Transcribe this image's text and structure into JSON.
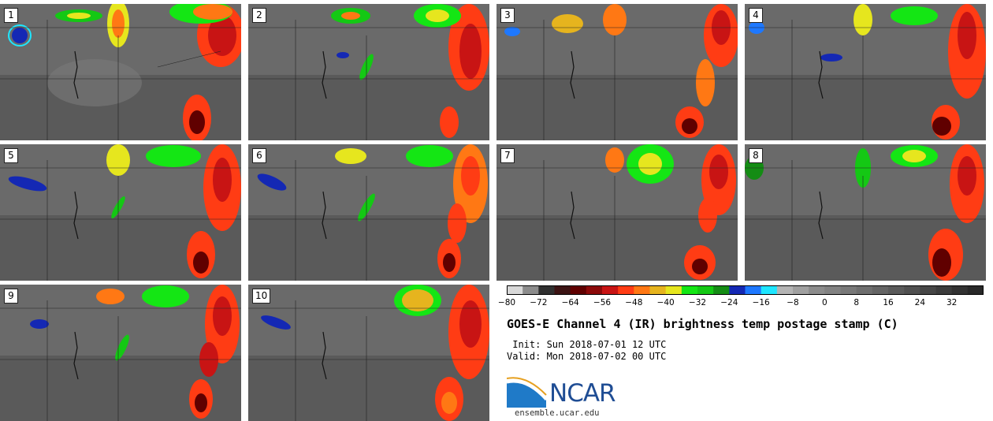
{
  "panels": [
    {
      "label": "1"
    },
    {
      "label": "2"
    },
    {
      "label": "3"
    },
    {
      "label": "4"
    },
    {
      "label": "5"
    },
    {
      "label": "6"
    },
    {
      "label": "7"
    },
    {
      "label": "8"
    },
    {
      "label": "9"
    },
    {
      "label": "10"
    }
  ],
  "colorbar": {
    "ticks": [
      "−80",
      "−72",
      "−64",
      "−56",
      "−48",
      "−40",
      "−32",
      "−24",
      "−16",
      "−8",
      "0",
      "8",
      "16",
      "24",
      "32"
    ],
    "colors": [
      "#d8d8d8",
      "#8c8c8c",
      "#303030",
      "#3c1414",
      "#600000",
      "#8c0a0a",
      "#c81414",
      "#ff3c14",
      "#ff7814",
      "#e6b41e",
      "#e6e61e",
      "#14e614",
      "#14c814",
      "#148c14",
      "#1428b4",
      "#1e78ff",
      "#1ee6ff",
      "#b4b4b4",
      "#a0a0a0",
      "#8c8c8c",
      "#828282",
      "#787878",
      "#6e6e6e",
      "#646464",
      "#5a5a5a",
      "#505050",
      "#464646",
      "#3c3c3c",
      "#323232",
      "#282828"
    ]
  },
  "title": "GOES-E Channel 4 (IR) brightness temp postage stamp (C)",
  "init": " Init: Sun 2018-07-01 12 UTC",
  "valid": "Valid: Mon 2018-07-02 00 UTC",
  "logo": {
    "text": "NCAR",
    "url": "ensemble.ucar.edu",
    "color": "#1f4d94"
  }
}
